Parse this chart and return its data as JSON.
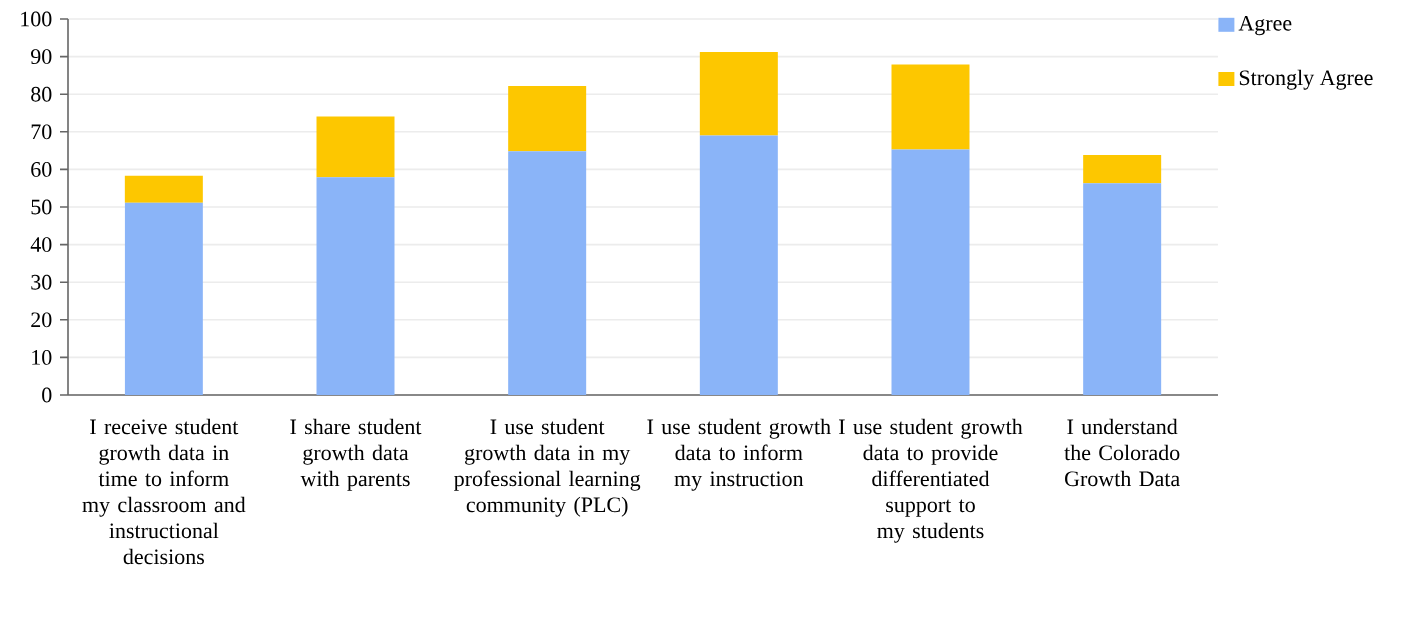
{
  "chart_data": {
    "type": "bar",
    "stacked": true,
    "categories": [
      "I receive student growth data in time to inform my classroom and instructional decisions",
      "I share student growth data with parents",
      "I use student growth data in my professional learning community (PLC)",
      "I use student growth data to inform my instruction",
      "I use student growth data to provide differentiated support to my students",
      "I understand the Colorado Growth Data"
    ],
    "series": [
      {
        "name": "Agree",
        "color": "#8ab4f8",
        "values": [
          51.1,
          57.9,
          64.8,
          69.0,
          65.3,
          56.3
        ]
      },
      {
        "name": "Strongly Agree",
        "color": "#fdc700",
        "values": [
          7.2,
          16.2,
          17.4,
          22.2,
          22.6,
          7.5
        ]
      }
    ],
    "ylim": [
      0,
      100
    ],
    "yticks": [
      0,
      10,
      20,
      30,
      40,
      50,
      60,
      70,
      80,
      90,
      100
    ],
    "grid": "y",
    "legend": "top right"
  }
}
